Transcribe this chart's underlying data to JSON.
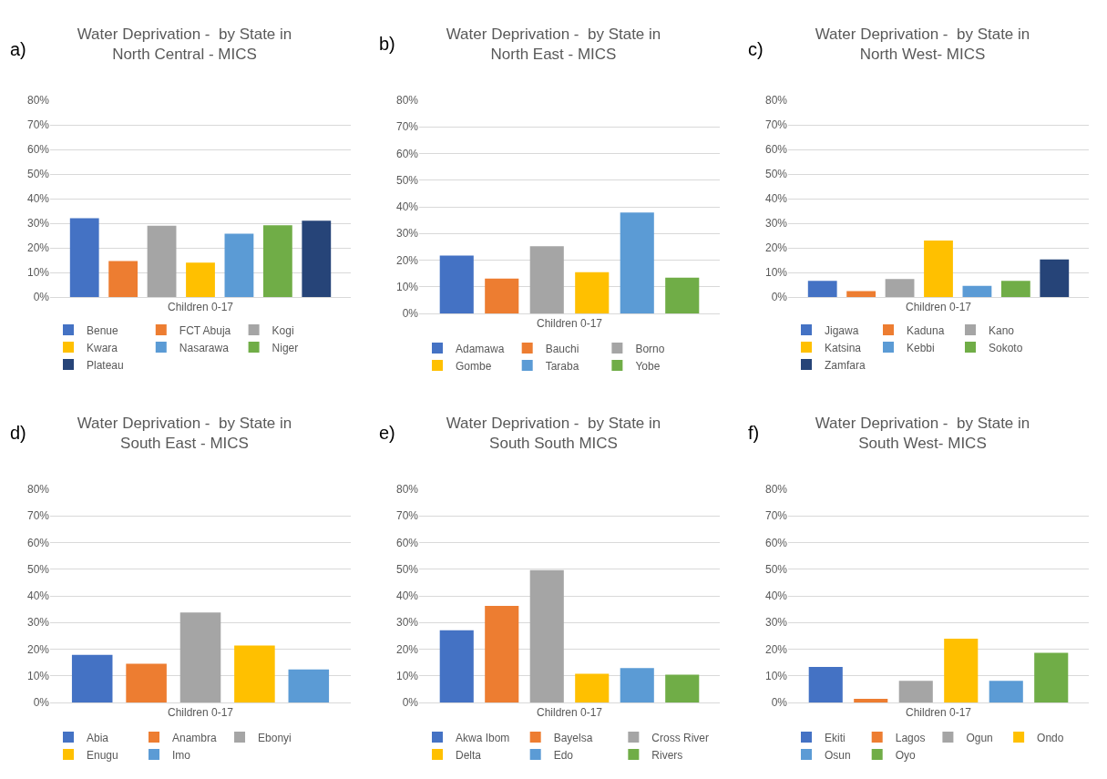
{
  "chart_data": [
    {
      "type": "bar",
      "title": "Water Deprivation -  by State in North Central - MICS",
      "annotations": [
        "a)"
      ],
      "categories": [
        "Children 0-17"
      ],
      "ylim": [
        0,
        80
      ],
      "yticks": [
        {
          "value": 0,
          "label": "0%"
        },
        {
          "value": 10,
          "label": "10%"
        },
        {
          "value": 20,
          "label": "20%"
        },
        {
          "value": 30,
          "label": "30%"
        },
        {
          "value": 40,
          "label": "40%"
        },
        {
          "value": 50,
          "label": "50%"
        },
        {
          "value": 60,
          "label": "60%"
        },
        {
          "value": 70,
          "label": "70%"
        },
        {
          "value": 80,
          "label": "80%"
        }
      ],
      "grid": "y",
      "legend": "bottom",
      "series": [
        {
          "name": "Benue",
          "color": "#4472c4",
          "values": [
            32
          ]
        },
        {
          "name": "FCT Abuja",
          "color": "#ed7d31",
          "values": [
            14.6
          ]
        },
        {
          "name": "Kogi",
          "color": "#a5a5a5",
          "values": [
            29
          ]
        },
        {
          "name": "Kwara",
          "color": "#ffc000",
          "values": [
            14
          ]
        },
        {
          "name": "Nasarawa",
          "color": "#5b9bd5",
          "values": [
            25.7
          ]
        },
        {
          "name": "Niger",
          "color": "#70ad47",
          "values": [
            29.2
          ]
        },
        {
          "name": "Plateau",
          "color": "#264478",
          "values": [
            31
          ]
        }
      ]
    },
    {
      "type": "bar",
      "title": "Water Deprivation -  by State in North East - MICS",
      "annotations": [
        "b)"
      ],
      "categories": [
        "Children 0-17"
      ],
      "ylim": [
        0,
        80
      ],
      "yticks": [
        {
          "value": 0,
          "label": "0%"
        },
        {
          "value": 10,
          "label": "10%"
        },
        {
          "value": 20,
          "label": "20%"
        },
        {
          "value": 30,
          "label": "30%"
        },
        {
          "value": 40,
          "label": "40%"
        },
        {
          "value": 50,
          "label": "50%"
        },
        {
          "value": 60,
          "label": "60%"
        },
        {
          "value": 70,
          "label": "70%"
        },
        {
          "value": 80,
          "label": "80%"
        }
      ],
      "grid": "y",
      "legend": "bottom",
      "series": [
        {
          "name": "Adamawa",
          "color": "#4472c4",
          "values": [
            21.7
          ]
        },
        {
          "name": "Bauchi",
          "color": "#ed7d31",
          "values": [
            13.1
          ]
        },
        {
          "name": "Borno",
          "color": "#a5a5a5",
          "values": [
            25.2
          ]
        },
        {
          "name": "Gombe",
          "color": "#ffc000",
          "values": [
            15.5
          ]
        },
        {
          "name": "Taraba",
          "color": "#5b9bd5",
          "values": [
            37.9
          ]
        },
        {
          "name": "Yobe",
          "color": "#70ad47",
          "values": [
            13.4
          ]
        }
      ]
    },
    {
      "type": "bar",
      "title": "Water Deprivation -  by State in North West- MICS",
      "annotations": [
        "c)"
      ],
      "categories": [
        "Children 0-17"
      ],
      "ylim": [
        0,
        80
      ],
      "yticks": [
        {
          "value": 0,
          "label": "0%"
        },
        {
          "value": 10,
          "label": "10%"
        },
        {
          "value": 20,
          "label": "20%"
        },
        {
          "value": 30,
          "label": "30%"
        },
        {
          "value": 40,
          "label": "40%"
        },
        {
          "value": 50,
          "label": "50%"
        },
        {
          "value": 60,
          "label": "60%"
        },
        {
          "value": 70,
          "label": "70%"
        },
        {
          "value": 80,
          "label": "80%"
        }
      ],
      "grid": "y",
      "legend": "bottom",
      "series": [
        {
          "name": "Jigawa",
          "color": "#4472c4",
          "values": [
            6.6
          ]
        },
        {
          "name": "Kaduna",
          "color": "#ed7d31",
          "values": [
            2.4
          ]
        },
        {
          "name": "Kano",
          "color": "#a5a5a5",
          "values": [
            7.3
          ]
        },
        {
          "name": "Katsina",
          "color": "#ffc000",
          "values": [
            23
          ]
        },
        {
          "name": "Kebbi",
          "color": "#5b9bd5",
          "values": [
            4.5
          ]
        },
        {
          "name": "Sokoto",
          "color": "#70ad47",
          "values": [
            6.6
          ]
        },
        {
          "name": "Zamfara",
          "color": "#264478",
          "values": [
            15.3
          ]
        }
      ]
    },
    {
      "type": "bar",
      "title": "Water Deprivation -  by State in South East - MICS",
      "annotations": [
        "d)"
      ],
      "categories": [
        "Children 0-17"
      ],
      "ylim": [
        0,
        80
      ],
      "yticks": [
        {
          "value": 0,
          "label": "0%"
        },
        {
          "value": 10,
          "label": "10%"
        },
        {
          "value": 20,
          "label": "20%"
        },
        {
          "value": 30,
          "label": "30%"
        },
        {
          "value": 40,
          "label": "40%"
        },
        {
          "value": 50,
          "label": "50%"
        },
        {
          "value": 60,
          "label": "60%"
        },
        {
          "value": 70,
          "label": "70%"
        },
        {
          "value": 80,
          "label": "80%"
        }
      ],
      "grid": "y",
      "legend": "bottom",
      "series": [
        {
          "name": "Abia",
          "color": "#4472c4",
          "values": [
            17.9
          ]
        },
        {
          "name": "Anambra",
          "color": "#ed7d31",
          "values": [
            14.5
          ]
        },
        {
          "name": "Ebonyi",
          "color": "#a5a5a5",
          "values": [
            33.8
          ]
        },
        {
          "name": "Enugu",
          "color": "#ffc000",
          "values": [
            21.4
          ]
        },
        {
          "name": "Imo",
          "color": "#5b9bd5",
          "values": [
            12.4
          ]
        }
      ]
    },
    {
      "type": "bar",
      "title": "Water Deprivation -  by State in South South MICS",
      "annotations": [
        "e)"
      ],
      "categories": [
        "Children 0-17"
      ],
      "ylim": [
        0,
        80
      ],
      "yticks": [
        {
          "value": 0,
          "label": "0%"
        },
        {
          "value": 10,
          "label": "10%"
        },
        {
          "value": 20,
          "label": "20%"
        },
        {
          "value": 30,
          "label": "30%"
        },
        {
          "value": 40,
          "label": "40%"
        },
        {
          "value": 50,
          "label": "50%"
        },
        {
          "value": 60,
          "label": "60%"
        },
        {
          "value": 70,
          "label": "70%"
        },
        {
          "value": 80,
          "label": "80%"
        }
      ],
      "grid": "y",
      "legend": "bottom",
      "series": [
        {
          "name": "Akwa Ibom",
          "color": "#4472c4",
          "values": [
            27.1
          ]
        },
        {
          "name": "Bayelsa",
          "color": "#ed7d31",
          "values": [
            36.2
          ]
        },
        {
          "name": "Cross River",
          "color": "#a5a5a5",
          "values": [
            49.7
          ]
        },
        {
          "name": "Delta",
          "color": "#ffc000",
          "values": [
            10.8
          ]
        },
        {
          "name": "Edo",
          "color": "#5b9bd5",
          "values": [
            12.9
          ]
        },
        {
          "name": "Rivers",
          "color": "#70ad47",
          "values": [
            10.4
          ]
        }
      ]
    },
    {
      "type": "bar",
      "title": "Water Deprivation -  by State in South West- MICS",
      "annotations": [
        "f)"
      ],
      "categories": [
        "Children 0-17"
      ],
      "ylim": [
        0,
        80
      ],
      "yticks": [
        {
          "value": 0,
          "label": "0%"
        },
        {
          "value": 10,
          "label": "10%"
        },
        {
          "value": 20,
          "label": "20%"
        },
        {
          "value": 30,
          "label": "30%"
        },
        {
          "value": 40,
          "label": "40%"
        },
        {
          "value": 50,
          "label": "50%"
        },
        {
          "value": 60,
          "label": "60%"
        },
        {
          "value": 70,
          "label": "70%"
        },
        {
          "value": 80,
          "label": "80%"
        }
      ],
      "grid": "y",
      "legend": "bottom",
      "series": [
        {
          "name": "Ekiti",
          "color": "#4472c4",
          "values": [
            13.3
          ]
        },
        {
          "name": "Lagos",
          "color": "#ed7d31",
          "values": [
            1.4
          ]
        },
        {
          "name": "Ogun",
          "color": "#a5a5a5",
          "values": [
            8.1
          ]
        },
        {
          "name": "Ondo",
          "color": "#ffc000",
          "values": [
            23.9
          ]
        },
        {
          "name": "Osun",
          "color": "#5b9bd5",
          "values": [
            8.1
          ]
        },
        {
          "name": "Oyo",
          "color": "#70ad47",
          "values": [
            18.6
          ]
        }
      ]
    }
  ]
}
